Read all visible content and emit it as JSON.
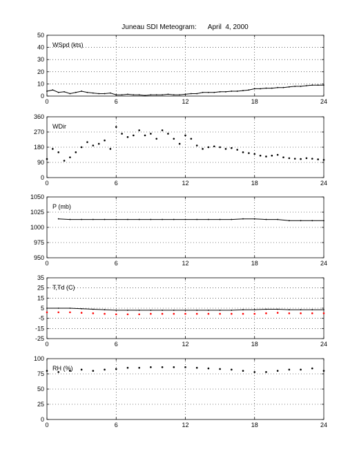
{
  "figure": {
    "title": "Juneau SDI Meteogram:      April  4, 2000"
  },
  "chart_data": [
    {
      "type": "line",
      "panel_label": "WSpd (kts)",
      "xlim": [
        0,
        24
      ],
      "ylim": [
        0,
        50
      ],
      "x_ticks": [
        0,
        6,
        12,
        18,
        24
      ],
      "y_ticks": [
        0,
        10,
        20,
        30,
        40,
        50
      ],
      "grid": true,
      "series": [
        {
          "color": "#000000",
          "style": "line",
          "x": [
            0,
            0.5,
            1,
            1.5,
            2,
            2.5,
            3,
            3.5,
            4,
            4.5,
            5,
            5.5,
            6,
            6.5,
            7,
            7.5,
            8,
            8.5,
            9,
            9.5,
            10,
            10.5,
            11,
            11.5,
            12,
            12.5,
            13,
            13.5,
            14,
            14.5,
            15,
            15.5,
            16,
            16.5,
            17,
            17.5,
            18,
            18.5,
            19,
            19.5,
            20,
            20.5,
            21,
            21.5,
            22,
            22.5,
            23,
            23.5,
            24
          ],
          "y": [
            4,
            5,
            3,
            3.5,
            2,
            3,
            4,
            3,
            2.5,
            2,
            2,
            2.5,
            1,
            1,
            1.5,
            1,
            1,
            0.5,
            1,
            1,
            1,
            1.5,
            1,
            1,
            1.5,
            2,
            2,
            3,
            3,
            3,
            3.5,
            3.5,
            4,
            4,
            4.5,
            5,
            6,
            6,
            6.5,
            6.5,
            7,
            7,
            7.5,
            8,
            8,
            8.5,
            9,
            9,
            9
          ]
        }
      ]
    },
    {
      "type": "scatter",
      "panel_label": "WDir",
      "xlim": [
        0,
        24
      ],
      "ylim": [
        0,
        360
      ],
      "x_ticks": [
        0,
        6,
        12,
        18,
        24
      ],
      "y_ticks": [
        0,
        90,
        180,
        270,
        360
      ],
      "grid": true,
      "series": [
        {
          "color": "#000000",
          "style": "dots",
          "x": [
            0,
            0.5,
            1,
            1.5,
            2,
            2.5,
            3,
            3.5,
            4,
            4.5,
            5,
            5.5,
            6,
            6.5,
            7,
            7.5,
            8,
            8.5,
            9,
            9.5,
            10,
            10.5,
            11,
            11.5,
            12,
            12.5,
            13,
            13.5,
            14,
            14.5,
            15,
            15.5,
            16,
            16.5,
            17,
            17.5,
            18,
            18.5,
            19,
            19.5,
            20,
            20.5,
            21,
            21.5,
            22,
            22.5,
            23,
            23.5,
            24
          ],
          "y": [
            110,
            170,
            150,
            100,
            120,
            150,
            180,
            210,
            190,
            200,
            220,
            170,
            300,
            260,
            240,
            250,
            280,
            250,
            260,
            230,
            280,
            260,
            230,
            200,
            250,
            230,
            190,
            170,
            180,
            185,
            180,
            170,
            175,
            165,
            150,
            145,
            140,
            130,
            125,
            130,
            135,
            120,
            115,
            112,
            110,
            115,
            112,
            108,
            105
          ]
        }
      ]
    },
    {
      "type": "line",
      "panel_label": "P (mb)",
      "xlim": [
        0,
        24
      ],
      "ylim": [
        950,
        1050
      ],
      "x_ticks": [
        0,
        6,
        12,
        18,
        24
      ],
      "y_ticks": [
        950,
        975,
        1000,
        1025,
        1050
      ],
      "grid": true,
      "series": [
        {
          "color": "#000000",
          "style": "line",
          "x": [
            1,
            2,
            3,
            4,
            5,
            6,
            7,
            8,
            9,
            10,
            11,
            12,
            13,
            14,
            15,
            16,
            17,
            18,
            19,
            20,
            21,
            22,
            23,
            24
          ],
          "y": [
            1014,
            1013,
            1013,
            1013,
            1013,
            1013,
            1013,
            1013,
            1013,
            1013,
            1013,
            1013,
            1013,
            1013,
            1013,
            1013,
            1014,
            1014,
            1013,
            1013,
            1011,
            1011,
            1011,
            1011
          ]
        }
      ]
    },
    {
      "type": "line",
      "panel_label": "T,Td (C)",
      "xlim": [
        0,
        24
      ],
      "ylim": [
        -25,
        35
      ],
      "x_ticks": [
        0,
        6,
        12,
        18,
        24
      ],
      "y_ticks": [
        -25,
        -15,
        -5,
        5,
        15,
        25,
        35
      ],
      "grid": true,
      "series": [
        {
          "color": "#000000",
          "style": "line",
          "x": [
            0,
            1,
            2,
            3,
            4,
            5,
            6,
            7,
            8,
            9,
            10,
            11,
            12,
            13,
            14,
            15,
            16,
            17,
            18,
            19,
            20,
            21,
            22,
            23,
            24
          ],
          "y": [
            5,
            5,
            5,
            4.5,
            4,
            3.5,
            3,
            3,
            3,
            3,
            3,
            3,
            3,
            3,
            3,
            3,
            3,
            3.5,
            3.5,
            4,
            4,
            3.5,
            3.5,
            3.5,
            3.5
          ]
        },
        {
          "color": "#ff0000",
          "style": "dots",
          "x": [
            0,
            1,
            2,
            3,
            4,
            5,
            6,
            7,
            8,
            9,
            10,
            11,
            12,
            13,
            14,
            15,
            16,
            17,
            18,
            19,
            20,
            21,
            22,
            23,
            24
          ],
          "y": [
            1,
            1,
            1,
            0.5,
            0,
            -0.5,
            -1,
            -1,
            -1,
            -0.5,
            -0.5,
            -0.5,
            -0.5,
            -0.5,
            -0.5,
            -0.5,
            -0.5,
            -0.5,
            -0.5,
            0,
            0.5,
            0,
            0,
            0,
            0
          ]
        }
      ]
    },
    {
      "type": "scatter",
      "panel_label": "RH (%)",
      "xlim": [
        0,
        24
      ],
      "ylim": [
        0,
        100
      ],
      "x_ticks": [
        0,
        6,
        12,
        18,
        24
      ],
      "y_ticks": [
        0,
        25,
        50,
        75,
        100
      ],
      "grid": true,
      "series": [
        {
          "color": "#000000",
          "style": "dots",
          "x": [
            0,
            1,
            2,
            3,
            4,
            5,
            6,
            7,
            8,
            9,
            10,
            11,
            12,
            13,
            14,
            15,
            16,
            17,
            18,
            19,
            20,
            21,
            22,
            23,
            24
          ],
          "y": [
            80,
            78,
            80,
            82,
            80,
            82,
            83,
            85,
            85,
            86,
            86,
            86,
            86,
            85,
            84,
            83,
            82,
            80,
            78,
            78,
            80,
            82,
            82,
            84,
            80
          ]
        }
      ]
    }
  ]
}
